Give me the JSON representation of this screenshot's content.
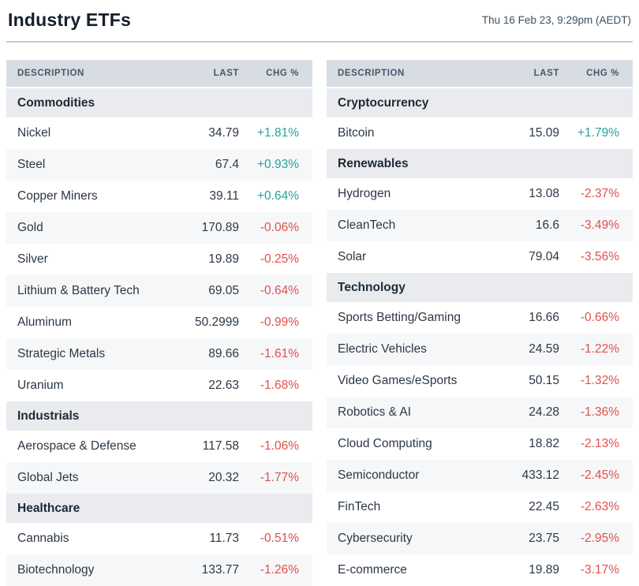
{
  "header": {
    "title": "Industry ETFs",
    "timestamp": "Thu 16 Feb 23, 9:29pm (AEDT)"
  },
  "table_columns": {
    "description": "Description",
    "last": "Last",
    "chg": "Chg %"
  },
  "colors": {
    "positive": "#27a39a",
    "negative": "#e0504f",
    "thead_bg": "#d8dde3",
    "section_bg": "#e9ebee",
    "alt_row_bg": "#f6f7f8",
    "title_color": "#141f2b"
  },
  "tables": [
    {
      "id": "left",
      "sections": [
        {
          "name": "Commodities",
          "rows": [
            {
              "description": "Nickel",
              "last": "34.79",
              "chg": "+1.81%"
            },
            {
              "description": "Steel",
              "last": "67.4",
              "chg": "+0.93%"
            },
            {
              "description": "Copper Miners",
              "last": "39.11",
              "chg": "+0.64%"
            },
            {
              "description": "Gold",
              "last": "170.89",
              "chg": "-0.06%"
            },
            {
              "description": "Silver",
              "last": "19.89",
              "chg": "-0.25%"
            },
            {
              "description": "Lithium & Battery Tech",
              "last": "69.05",
              "chg": "-0.64%"
            },
            {
              "description": "Aluminum",
              "last": "50.2999",
              "chg": "-0.99%"
            },
            {
              "description": "Strategic Metals",
              "last": "89.66",
              "chg": "-1.61%"
            },
            {
              "description": "Uranium",
              "last": "22.63",
              "chg": "-1.68%"
            }
          ]
        },
        {
          "name": "Industrials",
          "rows": [
            {
              "description": "Aerospace & Defense",
              "last": "117.58",
              "chg": "-1.06%"
            },
            {
              "description": "Global Jets",
              "last": "20.32",
              "chg": "-1.77%"
            }
          ]
        },
        {
          "name": "Healthcare",
          "rows": [
            {
              "description": "Cannabis",
              "last": "11.73",
              "chg": "-0.51%"
            },
            {
              "description": "Biotechnology",
              "last": "133.77",
              "chg": "-1.26%"
            }
          ]
        }
      ]
    },
    {
      "id": "right",
      "sections": [
        {
          "name": "Cryptocurrency",
          "rows": [
            {
              "description": "Bitcoin",
              "last": "15.09",
              "chg": "+1.79%"
            }
          ]
        },
        {
          "name": "Renewables",
          "rows": [
            {
              "description": "Hydrogen",
              "last": "13.08",
              "chg": "-2.37%"
            },
            {
              "description": "CleanTech",
              "last": "16.6",
              "chg": "-3.49%"
            },
            {
              "description": "Solar",
              "last": "79.04",
              "chg": "-3.56%"
            }
          ]
        },
        {
          "name": "Technology",
          "rows": [
            {
              "description": "Sports Betting/Gaming",
              "last": "16.66",
              "chg": "-0.66%"
            },
            {
              "description": "Electric Vehicles",
              "last": "24.59",
              "chg": "-1.22%"
            },
            {
              "description": "Video Games/eSports",
              "last": "50.15",
              "chg": "-1.32%"
            },
            {
              "description": "Robotics & AI",
              "last": "24.28",
              "chg": "-1.36%"
            },
            {
              "description": "Cloud Computing",
              "last": "18.82",
              "chg": "-2.13%"
            },
            {
              "description": "Semiconductor",
              "last": "433.12",
              "chg": "-2.45%"
            },
            {
              "description": "FinTech",
              "last": "22.45",
              "chg": "-2.63%"
            },
            {
              "description": "Cybersecurity",
              "last": "23.75",
              "chg": "-2.95%"
            },
            {
              "description": "E-commerce",
              "last": "19.89",
              "chg": "-3.17%"
            }
          ]
        }
      ]
    }
  ]
}
